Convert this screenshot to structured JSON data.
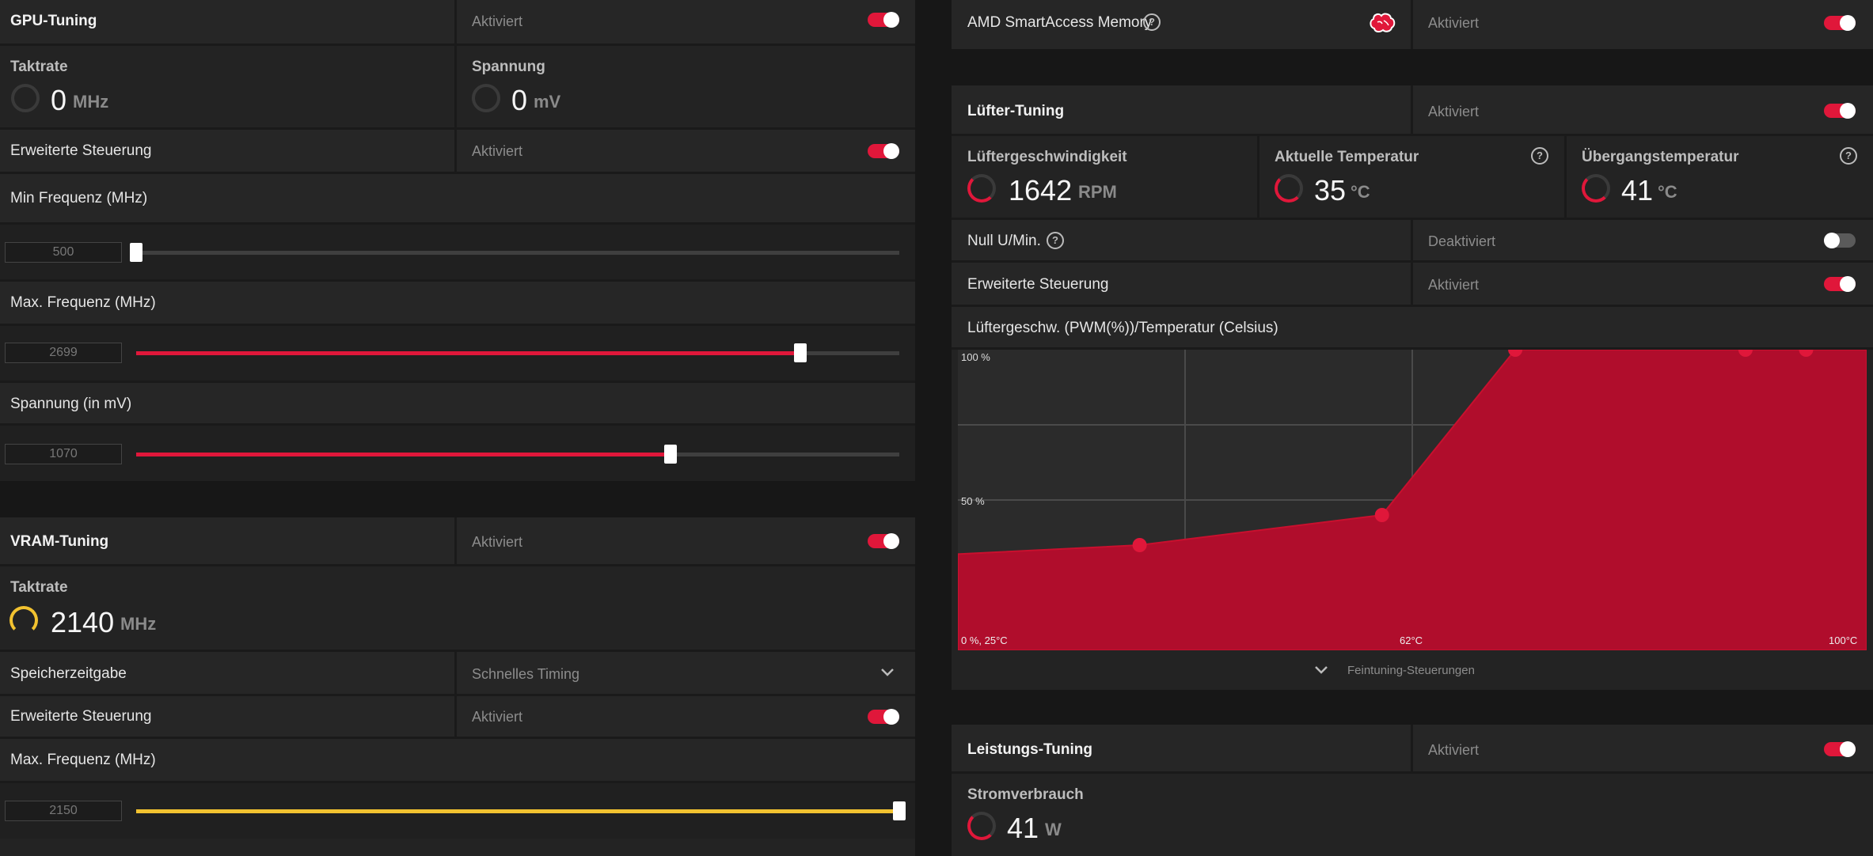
{
  "gpu": {
    "title": "GPU-Tuning",
    "status": "Aktiviert",
    "clock_label": "Taktrate",
    "clock_value": "0",
    "clock_unit": "MHz",
    "voltage_label": "Spannung",
    "voltage_value": "0",
    "voltage_unit": "mV",
    "advanced_label": "Erweiterte Steuerung",
    "advanced_status": "Aktiviert",
    "min_freq_label": "Min Frequenz (MHz)",
    "min_freq_value": "500",
    "min_freq_position": 0.0,
    "max_freq_label": "Max. Frequenz (MHz)",
    "max_freq_value": "2699",
    "max_freq_position": 0.87,
    "voltage_slider_label": "Spannung (in mV)",
    "voltage_slider_value": "1070",
    "voltage_slider_position": 0.7
  },
  "vram": {
    "title": "VRAM-Tuning",
    "status": "Aktiviert",
    "clock_label": "Taktrate",
    "clock_value": "2140",
    "clock_unit": "MHz",
    "timing_label": "Speicherzeitgabe",
    "timing_value": "Schnelles Timing",
    "advanced_label": "Erweiterte Steuerung",
    "advanced_status": "Aktiviert",
    "max_freq_label": "Max. Frequenz (MHz)",
    "max_freq_value": "2150",
    "max_freq_position": 1.0
  },
  "sam": {
    "label": "AMD SmartAccess Memory",
    "status": "Aktiviert"
  },
  "fan": {
    "title": "Lüfter-Tuning",
    "status": "Aktiviert",
    "speed_label": "Lüftergeschwindigkeit",
    "speed_value": "1642",
    "speed_unit": "RPM",
    "temp_label": "Aktuelle Temperatur",
    "temp_value": "35",
    "temp_unit": "°C",
    "junction_label": "Übergangstemperatur",
    "junction_value": "41",
    "junction_unit": "°C",
    "zero_rpm_label": "Null U/Min.",
    "zero_rpm_status": "Deaktiviert",
    "advanced_label": "Erweiterte Steuerung",
    "advanced_status": "Aktiviert",
    "curve_label": "Lüftergeschw. (PWM(%))/Temperatur (Celsius)",
    "fine_tuning_label": "Feintuning-Steuerungen"
  },
  "power": {
    "title": "Leistungs-Tuning",
    "status": "Aktiviert",
    "consumption_label": "Stromverbrauch",
    "consumption_value": "41",
    "consumption_unit": "W"
  },
  "colors": {
    "accent": "#e0173a",
    "accent_dark": "#b00d2c",
    "yellow": "#f2c230",
    "panel": "#232323"
  },
  "chart_data": {
    "type": "area",
    "x": [
      25,
      40,
      60,
      71,
      90,
      95
    ],
    "y": [
      32,
      35,
      45,
      100,
      100,
      100
    ],
    "xlim": [
      25,
      100
    ],
    "ylim": [
      0,
      100
    ],
    "y_ticks": [
      "100 %",
      "50 %"
    ],
    "x_ticks": [
      "0 %, 25°C",
      "62°C",
      "100°C"
    ],
    "grid": true
  }
}
